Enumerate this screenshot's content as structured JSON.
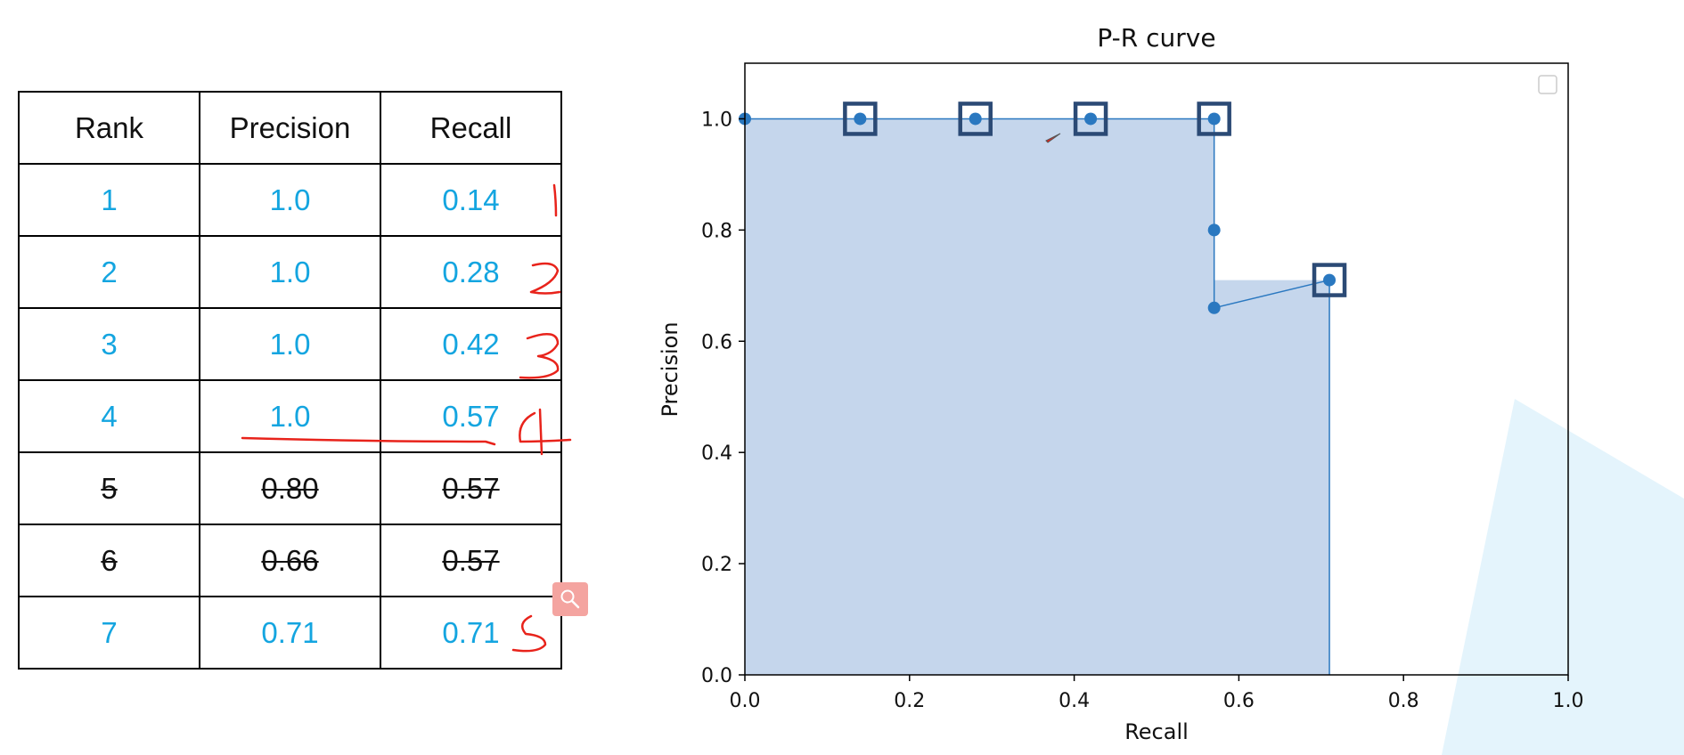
{
  "table": {
    "headers": [
      "Rank",
      "Precision",
      "Recall"
    ],
    "rows": [
      {
        "rank": "1",
        "precision": "1.0",
        "recall": "0.14",
        "struck": false
      },
      {
        "rank": "2",
        "precision": "1.0",
        "recall": "0.28",
        "struck": false
      },
      {
        "rank": "3",
        "precision": "1.0",
        "recall": "0.42",
        "struck": false
      },
      {
        "rank": "4",
        "precision": "1.0",
        "recall": "0.57",
        "struck": false
      },
      {
        "rank": "5",
        "precision": "0.80",
        "recall": "0.57",
        "struck": true
      },
      {
        "rank": "6",
        "precision": "0.66",
        "recall": "0.57",
        "struck": true
      },
      {
        "rank": "7",
        "precision": "0.71",
        "recall": "0.71",
        "struck": false
      }
    ]
  },
  "colors": {
    "kept_text": "#14a5e0",
    "annotation": "#e8231b",
    "series": "#2a78c0",
    "fill": "#c5d6ec",
    "marker_box": "#2b4a75",
    "watermark": "#e4f4fc"
  },
  "chart_data": {
    "type": "line",
    "title": "P-R curve",
    "xlabel": "Recall",
    "ylabel": "Precision",
    "xlim": [
      0.0,
      1.0
    ],
    "ylim": [
      0.0,
      1.1
    ],
    "xticks": [
      "0.0",
      "0.2",
      "0.4",
      "0.6",
      "0.8",
      "1.0"
    ],
    "yticks": [
      "0.0",
      "0.2",
      "0.4",
      "0.6",
      "0.8",
      "1.0"
    ],
    "series": [
      {
        "x": [
          0.0,
          0.14,
          0.28,
          0.42,
          0.57,
          0.57,
          0.57,
          0.71
        ],
        "y": [
          1.0,
          1.0,
          1.0,
          1.0,
          1.0,
          0.8,
          0.66,
          0.71
        ]
      }
    ],
    "highlighted_points": [
      {
        "x": 0.14,
        "y": 1.0
      },
      {
        "x": 0.28,
        "y": 1.0
      },
      {
        "x": 0.42,
        "y": 1.0
      },
      {
        "x": 0.57,
        "y": 1.0
      },
      {
        "x": 0.71,
        "y": 0.71
      }
    ],
    "interpolated_area": {
      "x": [
        0.0,
        0.57,
        0.57,
        0.71,
        0.71
      ],
      "y": [
        1.0,
        1.0,
        0.71,
        0.71,
        0.0
      ]
    },
    "grid": false,
    "legend": "top-right (empty)"
  }
}
